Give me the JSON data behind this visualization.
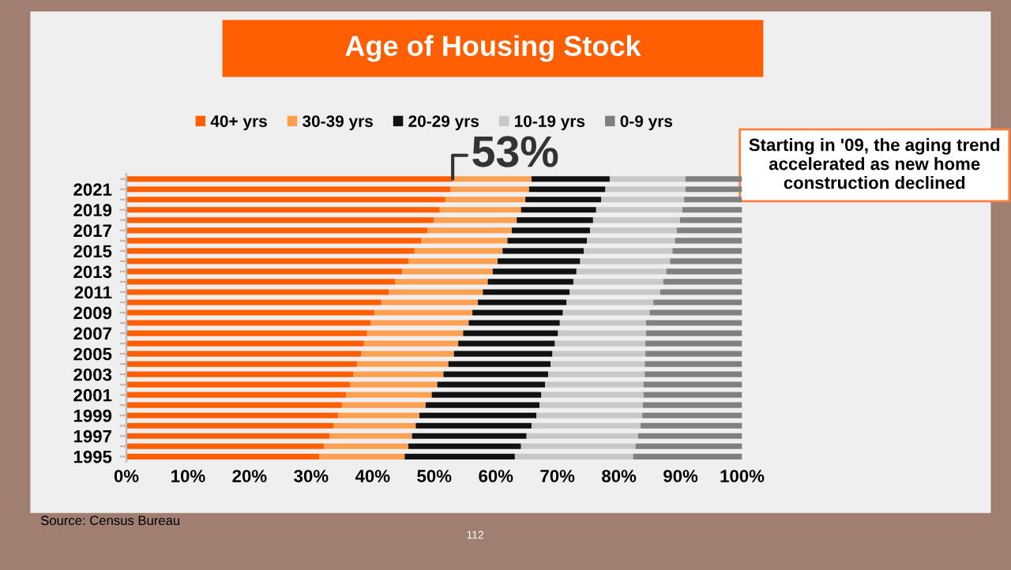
{
  "chart_data": {
    "type": "bar",
    "orientation": "horizontal",
    "stacked": true,
    "title": "Age of Housing Stock",
    "categories": [
      null,
      "2021",
      null,
      "2019",
      null,
      "2017",
      null,
      "2015",
      null,
      "2013",
      null,
      "2011",
      null,
      "2009",
      null,
      "2007",
      null,
      "2005",
      null,
      "2003",
      null,
      "2001",
      null,
      "1999",
      null,
      "1997",
      null,
      "1995"
    ],
    "series": [
      {
        "name": "40+ yrs",
        "color": "#ff5f00",
        "values": [
          53,
          52.6,
          51.8,
          50.9,
          49.9,
          48.9,
          47.9,
          46.8,
          45.8,
          44.8,
          43.7,
          42.6,
          41.4,
          40.3,
          39.7,
          39.1,
          38.6,
          38.1,
          37.5,
          36.9,
          36.3,
          35.7,
          35.0,
          34.4,
          33.7,
          33.0,
          32.1,
          31.3
        ]
      },
      {
        "name": "30-39 yrs",
        "color": "#ffa050",
        "values": [
          12.8,
          12.8,
          13.0,
          13.2,
          13.5,
          13.7,
          14.0,
          14.3,
          14.5,
          14.7,
          15.0,
          15.3,
          15.7,
          15.9,
          15.9,
          15.6,
          15.3,
          15.1,
          14.8,
          14.6,
          14.2,
          13.9,
          13.6,
          13.2,
          13.3,
          13.4,
          13.7,
          13.9
        ]
      },
      {
        "name": "20-29 yrs",
        "color": "#111111",
        "values": [
          12.7,
          12.4,
          12.3,
          12.2,
          12.4,
          12.7,
          12.9,
          13.2,
          13.4,
          13.6,
          13.9,
          14.1,
          14.4,
          14.7,
          14.8,
          15.4,
          15.7,
          16.0,
          16.6,
          17.0,
          17.5,
          17.8,
          18.5,
          19.0,
          18.8,
          18.6,
          18.3,
          17.9
        ]
      },
      {
        "name": "10-19 yrs",
        "color": "#c8c8c8",
        "values": [
          12.3,
          13.0,
          13.5,
          14.0,
          14.1,
          14.1,
          14.3,
          14.4,
          14.6,
          14.6,
          14.6,
          14.7,
          14.1,
          14.1,
          14.0,
          14.3,
          14.7,
          15.1,
          15.3,
          15.7,
          16.0,
          16.6,
          16.8,
          17.2,
          17.7,
          18.1,
          18.6,
          19.2
        ]
      },
      {
        "name": "0-9 yrs",
        "color": "#808080",
        "values": [
          9.2,
          9.2,
          9.4,
          9.7,
          10.1,
          10.6,
          10.9,
          11.3,
          11.7,
          12.3,
          12.8,
          13.3,
          14.4,
          15.0,
          15.6,
          15.6,
          15.7,
          15.7,
          15.8,
          15.8,
          16.0,
          16.0,
          16.1,
          16.2,
          16.5,
          16.9,
          17.3,
          17.7
        ]
      }
    ],
    "xlim": [
      0,
      100
    ],
    "xticks": [
      {
        "value": 0,
        "label": "0%"
      },
      {
        "value": 10,
        "label": "10%"
      },
      {
        "value": 20,
        "label": "20%"
      },
      {
        "value": 30,
        "label": "30%"
      },
      {
        "value": 40,
        "label": "40%"
      },
      {
        "value": 50,
        "label": "50%"
      },
      {
        "value": 60,
        "label": "60%"
      },
      {
        "value": 70,
        "label": "70%"
      },
      {
        "value": 80,
        "label": "80%"
      },
      {
        "value": 90,
        "label": "90%"
      },
      {
        "value": 100,
        "label": "100%"
      }
    ],
    "legend": "top",
    "grid": false,
    "annotations": [
      "53%",
      "Starting in '09, the aging trend accelerated as new home construction declined",
      "Source: Census Bureau",
      "112"
    ]
  }
}
